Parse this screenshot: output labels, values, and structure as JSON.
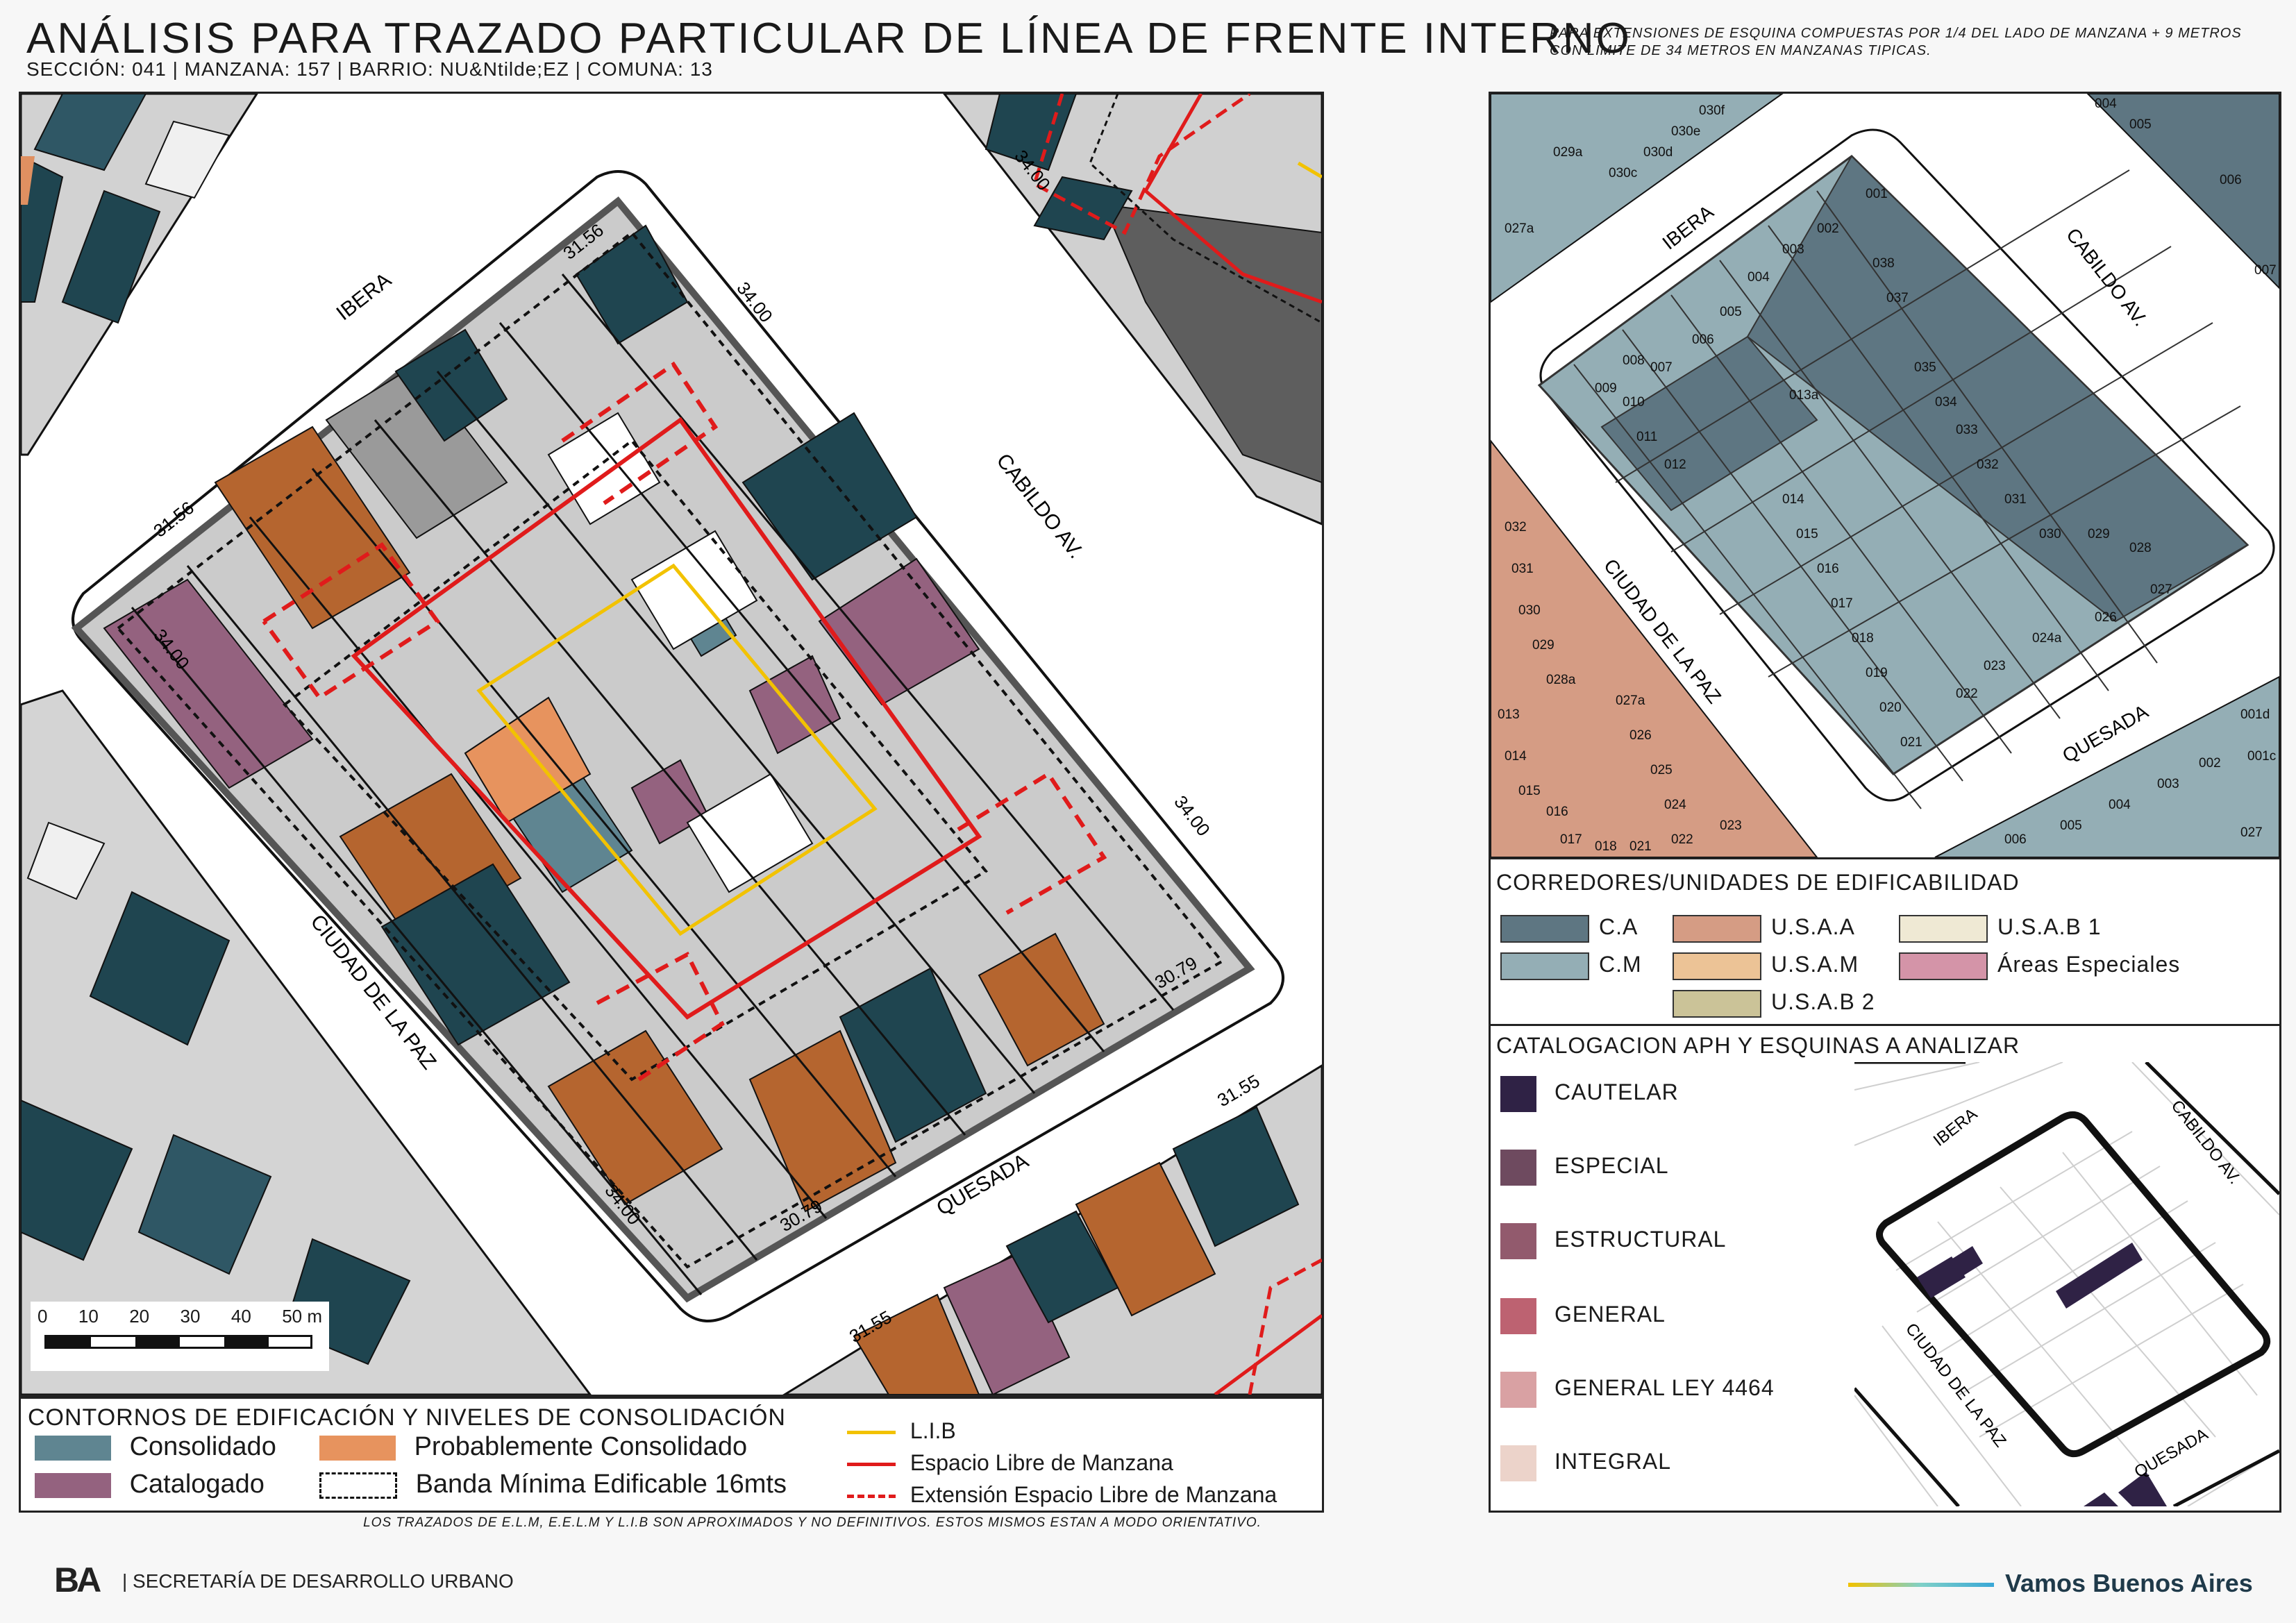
{
  "header": {
    "title": "ANÁLISIS PARA TRAZADO PARTICULAR DE LÍNEA DE FRENTE INTERNO",
    "subtitle": "SECCIÓN: 041 |  MANZANA: 157 | BARRIO: NU&Ntilde;EZ | COMUNA: 13",
    "note": "PARA EXTENSIONES DE ESQUINA COMPUESTAS POR 1/4 DEL LADO DE MANZANA + 9 METROS CON LIMITE DE 34 METROS EN MANZANAS TIPICAS."
  },
  "main_map": {
    "streets": {
      "ibera": "IBERA",
      "cabildo": "CABILDO AV.",
      "ciudad_paz": "CIUDAD DE LA PAZ",
      "quesada": "QUESADA"
    },
    "dimensions": {
      "d1": "31.56",
      "d2": "34.00",
      "d3": "31.56",
      "d4": "34.00",
      "d5": "34.00",
      "d6": "30.79",
      "d7": "34.00",
      "d8": "30.79",
      "d9": "31.55",
      "d10": "31.55",
      "d11": "34.00"
    },
    "scale_bar": {
      "ticks": [
        "0",
        "10",
        "20",
        "30",
        "40",
        "50 m"
      ]
    }
  },
  "main_legend": {
    "heading": "CONTORNOS DE EDIFICACIÓN Y NIVELES DE CONSOLIDACIÓN",
    "items": [
      {
        "label": "Consolidado",
        "color": "#5f8591"
      },
      {
        "label": "Probablemente Consolidado",
        "color": "#e7935e"
      },
      {
        "label": "Catalogado",
        "color": "#94627f"
      },
      {
        "label": "Banda Mínima Edificable 16mts",
        "color": "#ffffff"
      }
    ],
    "lines": [
      {
        "label": "L.I.B",
        "color": "#f2c200"
      },
      {
        "label": "Espacio Libre de Manzana",
        "color": "#e01b1b"
      },
      {
        "label": "Extensión Espacio Libre de Manzana",
        "color": "#e01b1b"
      }
    ]
  },
  "right_map": {
    "streets": {
      "ibera": "IBERA",
      "cabildo": "CABILDO AV.",
      "ciudad_paz": "CIUDAD DE LA PAZ",
      "quesada": "QUESADA"
    },
    "parcels": [
      "001",
      "002",
      "003",
      "004",
      "005",
      "006",
      "007",
      "008",
      "009",
      "010",
      "011",
      "012",
      "013a",
      "014",
      "015",
      "016",
      "017",
      "018",
      "019",
      "020",
      "021",
      "022",
      "023",
      "024a",
      "026",
      "027",
      "028",
      "029",
      "030",
      "031",
      "032",
      "033",
      "034",
      "035",
      "037",
      "038"
    ],
    "outer_labels": [
      "027a",
      "029a",
      "030c",
      "030d",
      "030e",
      "030f",
      "032",
      "031",
      "030",
      "029",
      "028a",
      "027a",
      "026",
      "025",
      "024",
      "023",
      "022",
      "021",
      "018",
      "017",
      "016",
      "015",
      "014",
      "013",
      "001d",
      "001c",
      "002",
      "003",
      "004",
      "005",
      "006",
      "027",
      "004",
      "005",
      "006",
      "007"
    ]
  },
  "corredores": {
    "heading": "CORREDORES/UNIDADES DE EDIFICABILIDAD",
    "items": [
      {
        "label": "C.A",
        "color": "#5e7682"
      },
      {
        "label": "U.S.A.A",
        "color": "#d59c84"
      },
      {
        "label": "U.S.A.B 1",
        "color": "#efe9d4"
      },
      {
        "label": "C.M",
        "color": "#94aeb5"
      },
      {
        "label": "U.S.A.M",
        "color": "#ecc396"
      },
      {
        "label": "Áreas Especiales",
        "color": "#d494a8"
      },
      {
        "label": "U.S.A.B 2",
        "color": "#cbc398"
      }
    ]
  },
  "catalogacion": {
    "heading": "CATALOGACION APH Y ESQUINAS A ANALIZAR",
    "items": [
      {
        "label": "CAUTELAR",
        "color": "#2f2245"
      },
      {
        "label": "ESPECIAL",
        "color": "#6e4a5f"
      },
      {
        "label": "ESTRUCTURAL",
        "color": "#925a6d"
      },
      {
        "label": "GENERAL",
        "color": "#bd6271"
      },
      {
        "label": "GENERAL LEY 4464",
        "color": "#d9a1a3"
      },
      {
        "label": "INTEGRAL",
        "color": "#ecd3ca"
      }
    ],
    "mini_streets": {
      "ibera": "IBERA",
      "cabildo": "CABILDO AV.",
      "ciudad_paz": "CIUDAD DE LA PAZ",
      "quesada": "QUESADA"
    }
  },
  "footer": {
    "bottom_note": "LOS TRAZADOS DE E.L.M, E.E.L.M Y L.I.B SON APROXIMADOS Y NO DEFINITIVOS. ESTOS MISMOS ESTAN A MODO ORIENTATIVO.",
    "logo": "BA",
    "agency": "| SECRETARÍA DE DESARROLLO URBANO",
    "slogan": "Vamos Buenos Aires"
  }
}
